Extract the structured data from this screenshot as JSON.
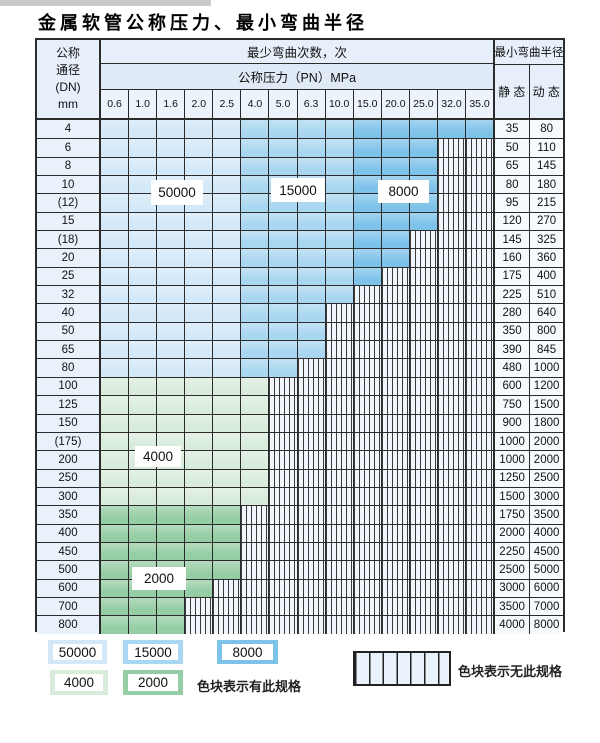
{
  "title": "金属软管公称压力、最小弯曲半径",
  "table": {
    "header": {
      "diameter_label_lines": [
        "公称",
        "通径",
        "(DN)",
        "mm"
      ],
      "bend_cycles_label": "最少弯曲次数，次",
      "pressure_label": "公称压力（PN）MPa",
      "radius_label": "最小弯曲半径",
      "static_label": "静 态",
      "dynamic_label": "动 态",
      "pressure_columns": [
        "0.6",
        "1.0",
        "1.6",
        "2.0",
        "2.5",
        "4.0",
        "5.0",
        "6.3",
        "10.0",
        "15.0",
        "20.0",
        "25.0",
        "32.0",
        "35.0"
      ]
    },
    "cycle_bands_note": "blue rows use per-column bands: cols 0.6-2.5 = 50000, cols 4.0-10.0 = 15000, cols 15.0-35.0 = 8000",
    "cycle_labels": {
      "l50000": "50000",
      "l15000": "15000",
      "l8000": "8000",
      "l4000": "4000",
      "l2000": "2000"
    },
    "rows": [
      {
        "dn": "4",
        "static": "35",
        "dynamic": "80",
        "last_colored_index": 13,
        "palette": "blue"
      },
      {
        "dn": "6",
        "static": "50",
        "dynamic": "110",
        "last_colored_index": 11,
        "palette": "blue"
      },
      {
        "dn": "8",
        "static": "65",
        "dynamic": "145",
        "last_colored_index": 11,
        "palette": "blue"
      },
      {
        "dn": "10",
        "static": "80",
        "dynamic": "180",
        "last_colored_index": 11,
        "palette": "blue"
      },
      {
        "dn": "(12)",
        "static": "95",
        "dynamic": "215",
        "last_colored_index": 11,
        "palette": "blue"
      },
      {
        "dn": "15",
        "static": "120",
        "dynamic": "270",
        "last_colored_index": 11,
        "palette": "blue"
      },
      {
        "dn": "(18)",
        "static": "145",
        "dynamic": "325",
        "last_colored_index": 10,
        "palette": "blue"
      },
      {
        "dn": "20",
        "static": "160",
        "dynamic": "360",
        "last_colored_index": 10,
        "palette": "blue"
      },
      {
        "dn": "25",
        "static": "175",
        "dynamic": "400",
        "last_colored_index": 9,
        "palette": "blue"
      },
      {
        "dn": "32",
        "static": "225",
        "dynamic": "510",
        "last_colored_index": 8,
        "palette": "blue"
      },
      {
        "dn": "40",
        "static": "280",
        "dynamic": "640",
        "last_colored_index": 7,
        "palette": "blue"
      },
      {
        "dn": "50",
        "static": "350",
        "dynamic": "800",
        "last_colored_index": 7,
        "palette": "blue"
      },
      {
        "dn": "65",
        "static": "390",
        "dynamic": "845",
        "last_colored_index": 7,
        "palette": "blue"
      },
      {
        "dn": "80",
        "static": "480",
        "dynamic": "1000",
        "last_colored_index": 6,
        "palette": "blue"
      },
      {
        "dn": "100",
        "static": "600",
        "dynamic": "1200",
        "last_colored_index": 5,
        "palette": "green4000"
      },
      {
        "dn": "125",
        "static": "750",
        "dynamic": "1500",
        "last_colored_index": 5,
        "palette": "green4000"
      },
      {
        "dn": "150",
        "static": "900",
        "dynamic": "1800",
        "last_colored_index": 5,
        "palette": "green4000"
      },
      {
        "dn": "(175)",
        "static": "1000",
        "dynamic": "2000",
        "last_colored_index": 5,
        "palette": "green4000"
      },
      {
        "dn": "200",
        "static": "1000",
        "dynamic": "2000",
        "last_colored_index": 5,
        "palette": "green4000"
      },
      {
        "dn": "250",
        "static": "1250",
        "dynamic": "2500",
        "last_colored_index": 5,
        "palette": "green4000"
      },
      {
        "dn": "300",
        "static": "1500",
        "dynamic": "3000",
        "last_colored_index": 5,
        "palette": "green4000"
      },
      {
        "dn": "350",
        "static": "1750",
        "dynamic": "3500",
        "last_colored_index": 4,
        "palette": "green2000"
      },
      {
        "dn": "400",
        "static": "2000",
        "dynamic": "4000",
        "last_colored_index": 4,
        "palette": "green2000"
      },
      {
        "dn": "450",
        "static": "2250",
        "dynamic": "4500",
        "last_colored_index": 4,
        "palette": "green2000"
      },
      {
        "dn": "500",
        "static": "2500",
        "dynamic": "5000",
        "last_colored_index": 4,
        "palette": "green2000"
      },
      {
        "dn": "600",
        "static": "3000",
        "dynamic": "6000",
        "last_colored_index": 3,
        "palette": "green2000"
      },
      {
        "dn": "700",
        "static": "3500",
        "dynamic": "7000",
        "last_colored_index": 2,
        "palette": "green2000"
      },
      {
        "dn": "800",
        "static": "4000",
        "dynamic": "8000",
        "last_colored_index": 2,
        "palette": "green2000"
      }
    ]
  },
  "legend": {
    "swatch_50000": "50000",
    "swatch_15000": "15000",
    "swatch_8000": "8000",
    "swatch_4000": "4000",
    "swatch_2000": "2000",
    "have_spec_text": "色块表示有此规格",
    "no_spec_text": "色块表示无此规格"
  },
  "colors": {
    "blue_50000": "#d3e8f8",
    "blue_15000": "#a9d6f0",
    "blue_8000": "#7dc2e9",
    "green_4000": "#d9ecdc",
    "green_2000": "#95cda4",
    "hatch_bg": "#f0f6fc",
    "header_bg": "#e7f0fa",
    "border": "#2b2b2b"
  }
}
